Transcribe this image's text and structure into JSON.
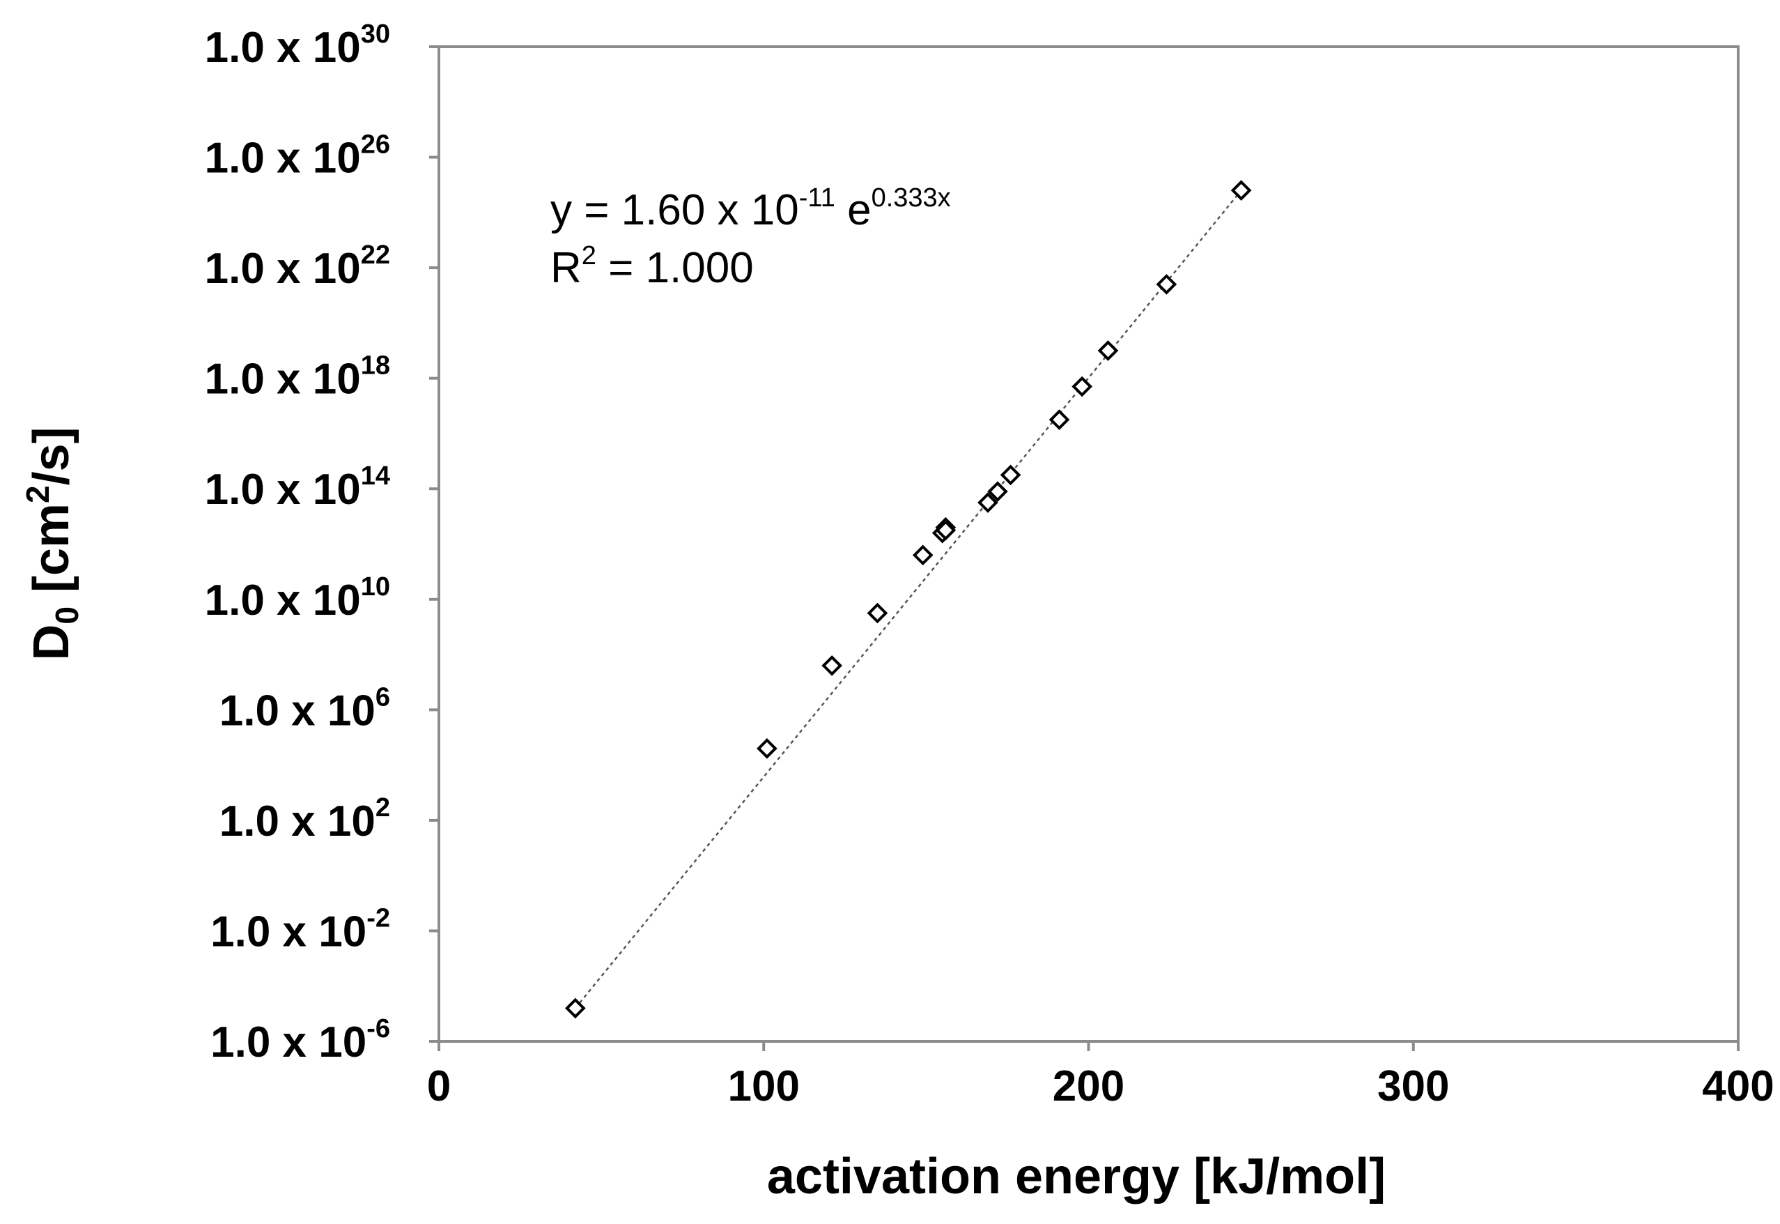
{
  "chart_data": {
    "type": "scatter",
    "title": "",
    "xlabel": "activation energy [kJ/mol]",
    "ylabel_main": "D",
    "ylabel_sub": "0",
    "ylabel_rest_a": " [cm",
    "ylabel_sup": "2",
    "ylabel_rest_b": "/s]",
    "xlim": [
      0,
      400
    ],
    "xticks": [
      0,
      100,
      200,
      300,
      400
    ],
    "y_scale": "log10",
    "ylim_exponent": [
      -6,
      30
    ],
    "y_tick_exponents": [
      -6,
      -2,
      2,
      6,
      10,
      14,
      18,
      22,
      26,
      30
    ],
    "y_tick_prefix": "1.0 x 10",
    "grid": false,
    "series": [
      {
        "name": "D0",
        "marker": "diamond-open",
        "points": [
          {
            "x": 42,
            "y_exp": -4.8
          },
          {
            "x": 101,
            "y_exp": 4.6
          },
          {
            "x": 121,
            "y_exp": 7.6
          },
          {
            "x": 135,
            "y_exp": 9.5
          },
          {
            "x": 149,
            "y_exp": 11.6
          },
          {
            "x": 155,
            "y_exp": 12.4
          },
          {
            "x": 156,
            "y_exp": 12.6
          },
          {
            "x": 156,
            "y_exp": 12.5
          },
          {
            "x": 169,
            "y_exp": 13.5
          },
          {
            "x": 172,
            "y_exp": 13.9
          },
          {
            "x": 176,
            "y_exp": 14.5
          },
          {
            "x": 191,
            "y_exp": 16.5
          },
          {
            "x": 198,
            "y_exp": 17.7
          },
          {
            "x": 206,
            "y_exp": 19.0
          },
          {
            "x": 224,
            "y_exp": 21.4
          },
          {
            "x": 247,
            "y_exp": 24.8
          }
        ]
      }
    ],
    "trendline": {
      "style": "dotted",
      "x_range": [
        42,
        247
      ],
      "y_exp_range": [
        -4.8,
        24.8
      ]
    },
    "equation": {
      "line1_a": "y = 1.60 x 10",
      "line1_sup1": "-11",
      "line1_b": " e",
      "line1_sup2": "0.333x",
      "line2_a": "R",
      "line2_sup": "2",
      "line2_b": " = 1.000"
    }
  }
}
